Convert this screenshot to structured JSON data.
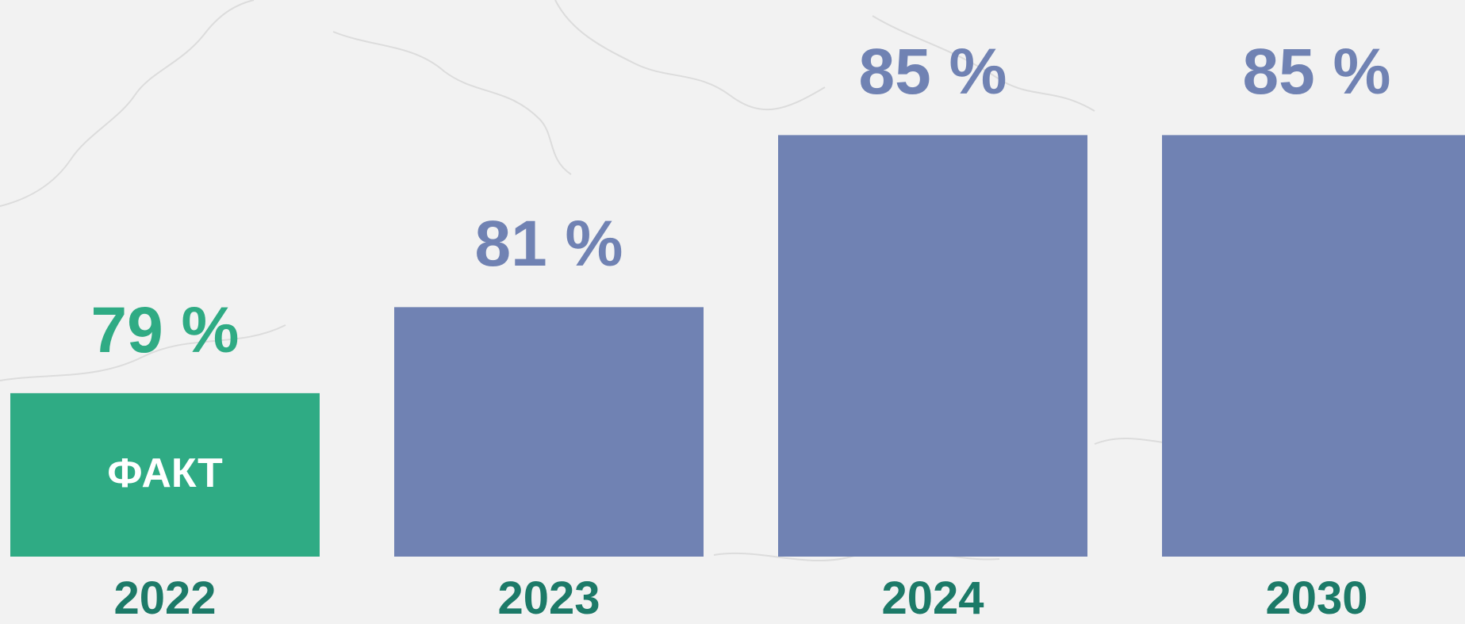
{
  "chart_data": {
    "type": "bar",
    "categories": [
      "2022",
      "2023",
      "2024",
      "2030"
    ],
    "values": [
      79,
      81,
      85,
      85
    ],
    "value_labels": [
      "79 %",
      "81 %",
      "85 %",
      "85 %"
    ],
    "bar_text": [
      "ФАКТ",
      "",
      "",
      ""
    ],
    "ylim": [
      75.2,
      85.8
    ],
    "grid": false,
    "colors": {
      "actual": "#2fab84",
      "target": "#7082b3",
      "year_label": "#1c7a68"
    }
  }
}
